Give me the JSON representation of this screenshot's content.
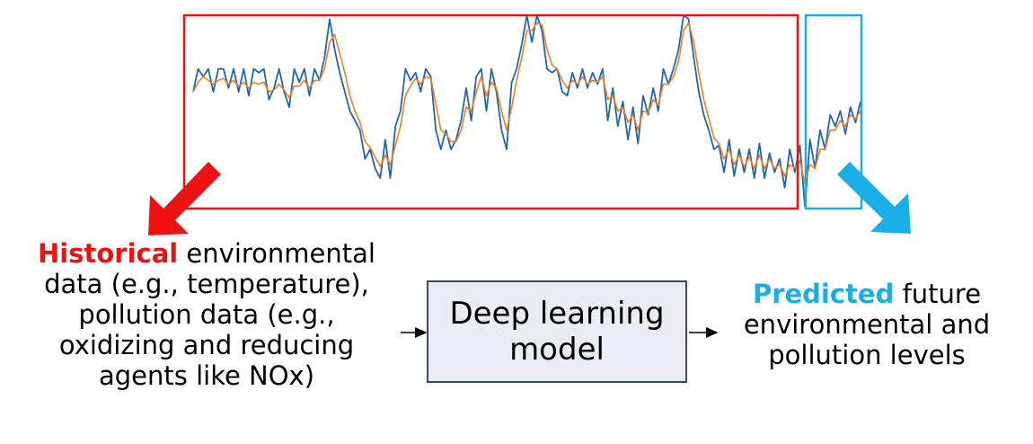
{
  "left": {
    "highlight": "Historical",
    "line1_rest": " environmental",
    "line2": "data (e.g., temperature),",
    "line3": "pollution data (e.g.,",
    "line4": "oxidizing and reducing",
    "line5": "agents like NOx)"
  },
  "model": {
    "line1": "Deep learning",
    "line2": "model"
  },
  "right": {
    "highlight": "Predicted",
    "line1_rest": " future",
    "line2": "environmental and",
    "line3": "pollution levels"
  },
  "colors": {
    "historical": "#ee1111",
    "predicted": "#1aaee8",
    "actual_series": "#2166ac",
    "smoothed_series": "#f07f1f"
  },
  "chart_data": {
    "type": "line",
    "series": [
      {
        "values": [
          0.6,
          0.72,
          0.68,
          0.72,
          0.6,
          0.72,
          0.72,
          0.62,
          0.72,
          0.6,
          0.72,
          0.58,
          0.72,
          0.7,
          0.72,
          0.56,
          0.62,
          0.72,
          0.6,
          0.52,
          0.72,
          0.65,
          0.72,
          0.58,
          0.72,
          0.66,
          0.78,
          0.98,
          0.82,
          0.7,
          0.6,
          0.5,
          0.45,
          0.4,
          0.25,
          0.3,
          0.2,
          0.15,
          0.35,
          0.15,
          0.42,
          0.5,
          0.72,
          0.66,
          0.7,
          0.6,
          0.72,
          0.68,
          0.4,
          0.3,
          0.4,
          0.3,
          0.35,
          0.45,
          0.62,
          0.45,
          0.68,
          0.72,
          0.5,
          0.72,
          0.6,
          0.4,
          0.3,
          0.65,
          0.72,
          0.85,
          1.0,
          0.86,
          1.0,
          0.92,
          0.72,
          0.7,
          0.72,
          0.6,
          0.58,
          0.7,
          0.62,
          0.72,
          0.62,
          0.7,
          0.64,
          0.72,
          0.45,
          0.62,
          0.42,
          0.55,
          0.35,
          0.52,
          0.33,
          0.58,
          0.48,
          0.62,
          0.5,
          0.72,
          0.64,
          0.72,
          0.82,
          1.0,
          0.98,
          0.78,
          0.6,
          0.48,
          0.4,
          0.3,
          0.32,
          0.18,
          0.35,
          0.16,
          0.3,
          0.18,
          0.3,
          0.15,
          0.33,
          0.15,
          0.28,
          0.18,
          0.25,
          0.1,
          0.3,
          0.18,
          0.32,
          0.0,
          0.35,
          0.2,
          0.4,
          0.3,
          0.48,
          0.42,
          0.5,
          0.38,
          0.52,
          0.44,
          0.55
        ]
      },
      {
        "values": [
          0.6,
          0.65,
          0.68,
          0.66,
          0.64,
          0.66,
          0.67,
          0.64,
          0.66,
          0.63,
          0.65,
          0.62,
          0.65,
          0.64,
          0.65,
          0.6,
          0.61,
          0.64,
          0.61,
          0.57,
          0.63,
          0.63,
          0.66,
          0.62,
          0.66,
          0.66,
          0.72,
          0.86,
          0.9,
          0.8,
          0.7,
          0.58,
          0.5,
          0.44,
          0.34,
          0.31,
          0.26,
          0.21,
          0.27,
          0.22,
          0.32,
          0.42,
          0.58,
          0.63,
          0.67,
          0.64,
          0.68,
          0.67,
          0.54,
          0.4,
          0.38,
          0.34,
          0.34,
          0.4,
          0.52,
          0.5,
          0.6,
          0.68,
          0.58,
          0.65,
          0.62,
          0.5,
          0.4,
          0.52,
          0.66,
          0.78,
          0.92,
          0.92,
          0.96,
          0.95,
          0.82,
          0.74,
          0.72,
          0.66,
          0.62,
          0.66,
          0.64,
          0.68,
          0.64,
          0.66,
          0.65,
          0.68,
          0.56,
          0.58,
          0.5,
          0.52,
          0.44,
          0.48,
          0.4,
          0.5,
          0.49,
          0.56,
          0.53,
          0.64,
          0.64,
          0.68,
          0.76,
          0.92,
          0.96,
          0.86,
          0.7,
          0.56,
          0.46,
          0.36,
          0.33,
          0.25,
          0.3,
          0.22,
          0.27,
          0.21,
          0.26,
          0.2,
          0.27,
          0.2,
          0.25,
          0.2,
          0.22,
          0.16,
          0.22,
          0.2,
          0.24,
          0.12,
          0.22,
          0.2,
          0.3,
          0.3,
          0.4,
          0.4,
          0.45,
          0.42,
          0.48,
          0.46,
          0.5
        ]
      }
    ]
  }
}
